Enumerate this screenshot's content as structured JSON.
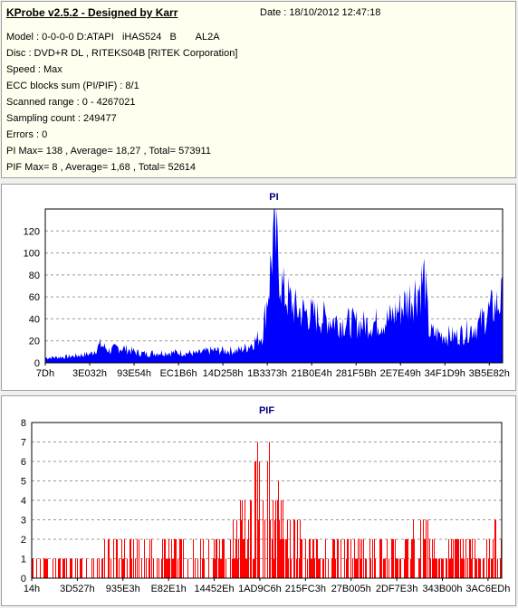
{
  "header": {
    "app_title": "KProbe v2.5.2 - Designed by Karr",
    "date": "Date : 18/10/2012 12:47:18",
    "lines": [
      "Model : 0-0-0-0 D:ATAPI   iHAS524   B       AL2A",
      "Disc : DVD+R DL , RITEKS04B [RITEK Corporation]",
      "Speed : Max",
      "ECC blocks sum (PI/PIF) : 8/1",
      "Scanned range : 0 - 4267021",
      "Sampling count : 249477",
      "Errors : 0",
      "PI Max= 138 , Average= 18,27 , Total= 573911",
      "PIF Max= 8 , Average= 1,68 , Total= 52614"
    ]
  },
  "chart_data": [
    {
      "type": "area",
      "title": "PI",
      "color": "#0000ff",
      "ylim": [
        0,
        140
      ],
      "yticks": [
        0,
        20,
        40,
        60,
        80,
        100,
        120
      ],
      "xtick_labels": [
        "7Dh",
        "3E032h",
        "93E54h",
        "EC1B6h",
        "14D258h",
        "1B3373h",
        "21B0E4h",
        "281F5Bh",
        "2E7E49h",
        "34F1D9h",
        "3B5E82h"
      ],
      "grid": true,
      "x": [
        0,
        0.05,
        0.1,
        0.12,
        0.14,
        0.16,
        0.18,
        0.2,
        0.22,
        0.25,
        0.28,
        0.3,
        0.33,
        0.36,
        0.39,
        0.42,
        0.44,
        0.46,
        0.475,
        0.48,
        0.49,
        0.5,
        0.52,
        0.55,
        0.6,
        0.65,
        0.7,
        0.75,
        0.78,
        0.8,
        0.82,
        0.83,
        0.84,
        0.86,
        0.9,
        0.95,
        0.97,
        1.0
      ],
      "values": [
        5,
        6,
        9,
        18,
        12,
        15,
        13,
        10,
        9,
        10,
        10,
        10,
        9,
        12,
        12,
        12,
        15,
        22,
        28,
        45,
        80,
        130,
        70,
        52,
        45,
        40,
        38,
        42,
        55,
        65,
        75,
        85,
        30,
        28,
        26,
        38,
        50,
        62
      ]
    },
    {
      "type": "bar",
      "title": "PIF",
      "color": "#ff0000",
      "ylim": [
        0,
        8
      ],
      "yticks": [
        0,
        1,
        2,
        3,
        4,
        5,
        6,
        7,
        8
      ],
      "xtick_labels": [
        "14h",
        "3D527h",
        "935E3h",
        "E82E1h",
        "14452Eh",
        "1AD9C6h",
        "215FC3h",
        "27B005h",
        "2DF7E3h",
        "343B00h",
        "3AC6EDh"
      ],
      "grid": true,
      "x": [
        0,
        0.05,
        0.1,
        0.15,
        0.2,
        0.25,
        0.3,
        0.35,
        0.4,
        0.44,
        0.46,
        0.48,
        0.5,
        0.52,
        0.55,
        0.6,
        0.65,
        0.7,
        0.75,
        0.8,
        0.83,
        0.85,
        0.9,
        0.95,
        1.0
      ],
      "values": [
        1,
        1,
        1,
        2,
        2,
        2,
        2,
        2,
        2,
        3,
        4,
        6,
        7,
        5,
        3,
        2,
        2,
        2,
        2,
        2,
        4,
        2,
        2,
        2,
        3
      ]
    }
  ]
}
